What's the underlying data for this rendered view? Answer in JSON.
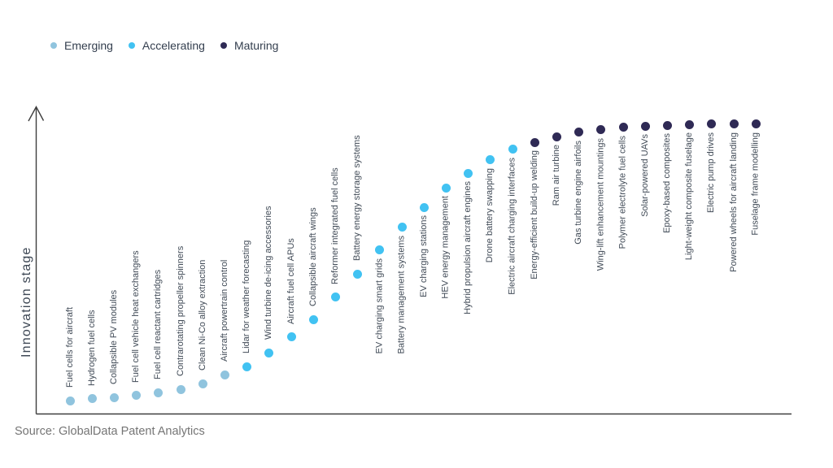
{
  "legend": {
    "items": [
      {
        "label": "Emerging",
        "color": "#90c4de"
      },
      {
        "label": "Accelerating",
        "color": "#41c2f2"
      },
      {
        "label": "Maturing",
        "color": "#2f2a55"
      }
    ]
  },
  "chart_data": {
    "type": "scatter",
    "title": "",
    "xlabel": "",
    "ylabel": "Innovation stage",
    "y_axis": {
      "min": 0,
      "max": 100,
      "ticks_visible": false,
      "arrow": true
    },
    "x_axis": {
      "categorical": true,
      "ticks_visible": false
    },
    "legend_position": "top-left",
    "grid": false,
    "stage_colors": {
      "Emerging": "#90c4de",
      "Accelerating": "#41c2f2",
      "Maturing": "#2f2a55"
    },
    "points": [
      {
        "label": "Fuel cells for aircraft",
        "stage": "Emerging",
        "value": 4.3
      },
      {
        "label": "Hydrogen fuel cells",
        "stage": "Emerging",
        "value": 4.9
      },
      {
        "label": "Collapsible PV modules",
        "stage": "Emerging",
        "value": 5.4
      },
      {
        "label": "Fuel cell vehicle heat exchangers",
        "stage": "Emerging",
        "value": 6.0
      },
      {
        "label": "Fuel cell reactant cartridges",
        "stage": "Emerging",
        "value": 7.0
      },
      {
        "label": "Contrarotating propeller spinners",
        "stage": "Emerging",
        "value": 8.1
      },
      {
        "label": "Clean Ni-Co alloy extraction",
        "stage": "Emerging",
        "value": 10.0
      },
      {
        "label": "Aircraft powertrain control",
        "stage": "Emerging",
        "value": 13.0
      },
      {
        "label": "Lidar for weather forecasting",
        "stage": "Accelerating",
        "value": 15.7
      },
      {
        "label": "Wind turbine de-icing accessories",
        "stage": "Accelerating",
        "value": 20.3
      },
      {
        "label": "Aircraft fuel cell APUs",
        "stage": "Accelerating",
        "value": 25.5
      },
      {
        "label": "Collapsible aircraft wings",
        "stage": "Accelerating",
        "value": 31.4
      },
      {
        "label": "Reformer integrated fuel cells",
        "stage": "Accelerating",
        "value": 38.8
      },
      {
        "label": "Battery energy storage systems",
        "stage": "Accelerating",
        "value": 46.6
      },
      {
        "label": "EV charging smart grids",
        "stage": "Accelerating",
        "value": 54.5
      },
      {
        "label": "Battery management systems",
        "stage": "Accelerating",
        "value": 62.1
      },
      {
        "label": "EV charging stations",
        "stage": "Accelerating",
        "value": 68.8
      },
      {
        "label": "HEV energy management",
        "stage": "Accelerating",
        "value": 75.3
      },
      {
        "label": "Hybrid propulsion aircraft engines",
        "stage": "Accelerating",
        "value": 80.2
      },
      {
        "label": "Drone battery swapping",
        "stage": "Accelerating",
        "value": 84.6
      },
      {
        "label": "Electric aircraft charging interfaces",
        "stage": "Accelerating",
        "value": 88.1
      },
      {
        "label": "Energy-efficient build-up welding",
        "stage": "Maturing",
        "value": 90.5
      },
      {
        "label": "Ram air turbine",
        "stage": "Maturing",
        "value": 92.4
      },
      {
        "label": "Gas turbine engine airfoils",
        "stage": "Maturing",
        "value": 93.8
      },
      {
        "label": "Wing-lift enhancement mountings",
        "stage": "Maturing",
        "value": 94.6
      },
      {
        "label": "Polymer electrolyte fuel cells",
        "stage": "Maturing",
        "value": 95.4
      },
      {
        "label": "Solar-powered UAVs",
        "stage": "Maturing",
        "value": 95.9
      },
      {
        "label": "Epoxy-based composites",
        "stage": "Maturing",
        "value": 96.2
      },
      {
        "label": "Light-weight composite fuselage",
        "stage": "Maturing",
        "value": 96.4
      },
      {
        "label": "Electric pump drives",
        "stage": "Maturing",
        "value": 96.5
      },
      {
        "label": "Powered wheels for aircraft landing",
        "stage": "Maturing",
        "value": 96.5
      },
      {
        "label": "Fuselage frame modelling",
        "stage": "Maturing",
        "value": 96.6
      }
    ]
  },
  "source": {
    "text": "Source: GlobalData Patent Analytics"
  },
  "axis_color": "#3d3d3d"
}
